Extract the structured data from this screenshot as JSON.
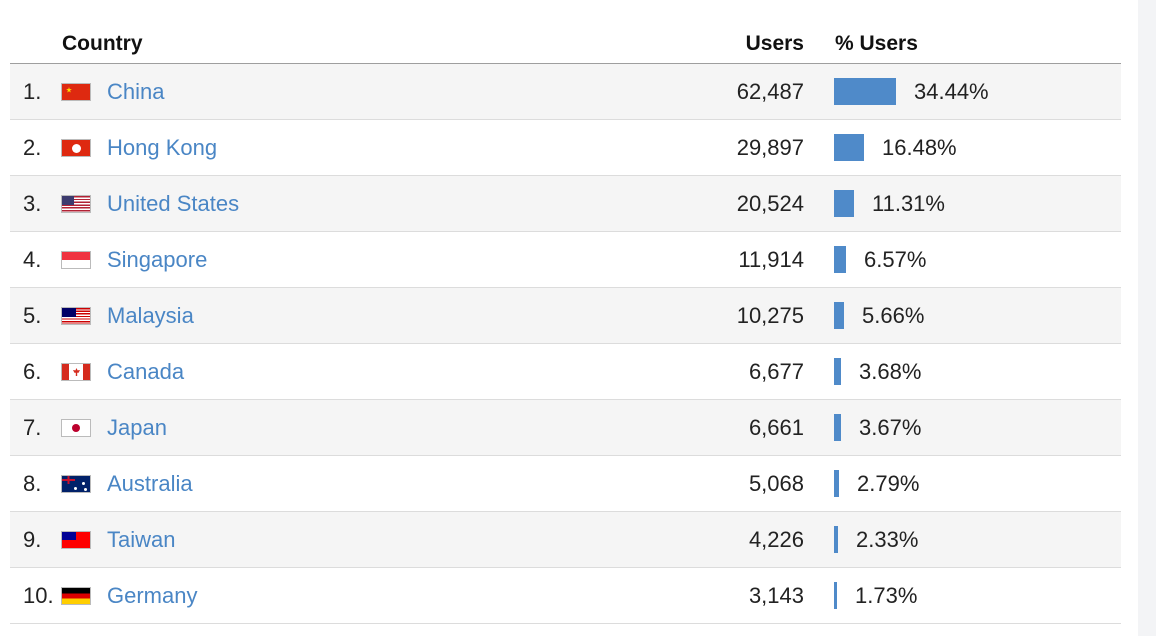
{
  "table": {
    "headers": {
      "country": "Country",
      "users": "Users",
      "pct_users": "% Users"
    },
    "rows": [
      {
        "rank": "1.",
        "flag": "china-flag-icon",
        "country": "China",
        "users": "62,487",
        "pct": "34.44%",
        "share": 0.3444
      },
      {
        "rank": "2.",
        "flag": "hong-kong-flag-icon",
        "country": "Hong Kong",
        "users": "29,897",
        "pct": "16.48%",
        "share": 0.1648
      },
      {
        "rank": "3.",
        "flag": "united-states-flag-icon",
        "country": "United States",
        "users": "20,524",
        "pct": "11.31%",
        "share": 0.1131
      },
      {
        "rank": "4.",
        "flag": "singapore-flag-icon",
        "country": "Singapore",
        "users": "11,914",
        "pct": "6.57%",
        "share": 0.0657
      },
      {
        "rank": "5.",
        "flag": "malaysia-flag-icon",
        "country": "Malaysia",
        "users": "10,275",
        "pct": "5.66%",
        "share": 0.0566
      },
      {
        "rank": "6.",
        "flag": "canada-flag-icon",
        "country": "Canada",
        "users": "6,677",
        "pct": "3.68%",
        "share": 0.0368
      },
      {
        "rank": "7.",
        "flag": "japan-flag-icon",
        "country": "Japan",
        "users": "6,661",
        "pct": "3.67%",
        "share": 0.0367
      },
      {
        "rank": "8.",
        "flag": "australia-flag-icon",
        "country": "Australia",
        "users": "5,068",
        "pct": "2.79%",
        "share": 0.0279
      },
      {
        "rank": "9.",
        "flag": "taiwan-flag-icon",
        "country": "Taiwan",
        "users": "4,226",
        "pct": "2.33%",
        "share": 0.0233
      },
      {
        "rank": "10.",
        "flag": "germany-flag-icon",
        "country": "Germany",
        "users": "3,143",
        "pct": "1.73%",
        "share": 0.0173
      }
    ]
  },
  "colors": {
    "link": "#4a86c5",
    "bar": "#4f8ac9",
    "row_shade": "#f5f5f5"
  }
}
